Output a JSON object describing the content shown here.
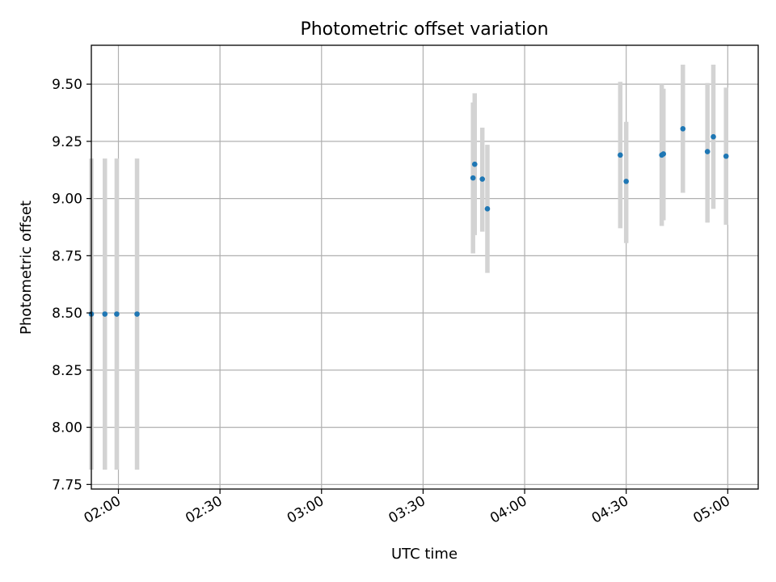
{
  "chart_data": {
    "type": "scatter",
    "title": "Photometric offset variation",
    "xlabel": "UTC time",
    "ylabel": "Photometric offset",
    "xlim": [
      "01:52",
      "05:09"
    ],
    "ylim": [
      7.73,
      9.67
    ],
    "x_ticks": [
      "02:00",
      "02:30",
      "03:00",
      "03:30",
      "04:00",
      "04:30",
      "05:00"
    ],
    "y_ticks": [
      "7.75",
      "8.00",
      "8.25",
      "8.50",
      "8.75",
      "9.00",
      "9.25",
      "9.50"
    ],
    "grid": true,
    "error_bars": true,
    "colors": {
      "points": "#1f77b4",
      "error_bars": "#d3d3d3",
      "grid": "#b0b0b0"
    },
    "points": [
      {
        "x": "01:52:00",
        "y": 8.495,
        "ylo": 7.815,
        "yhi": 9.175
      },
      {
        "x": "01:56:00",
        "y": 8.495,
        "ylo": 7.815,
        "yhi": 9.175
      },
      {
        "x": "01:59:30",
        "y": 8.495,
        "ylo": 7.815,
        "yhi": 9.175
      },
      {
        "x": "02:05:30",
        "y": 8.495,
        "ylo": 7.815,
        "yhi": 9.175
      },
      {
        "x": "03:44:45",
        "y": 9.09,
        "ylo": 8.76,
        "yhi": 9.42
      },
      {
        "x": "03:45:15",
        "y": 9.15,
        "ylo": 8.84,
        "yhi": 9.46
      },
      {
        "x": "03:47:30",
        "y": 9.085,
        "ylo": 8.855,
        "yhi": 9.31
      },
      {
        "x": "03:49:00",
        "y": 8.955,
        "ylo": 8.675,
        "yhi": 9.235
      },
      {
        "x": "04:28:15",
        "y": 9.19,
        "ylo": 8.87,
        "yhi": 9.51
      },
      {
        "x": "04:30:00",
        "y": 9.075,
        "ylo": 8.805,
        "yhi": 9.335
      },
      {
        "x": "04:40:30",
        "y": 9.19,
        "ylo": 8.88,
        "yhi": 9.5
      },
      {
        "x": "04:41:00",
        "y": 9.195,
        "ylo": 8.905,
        "yhi": 9.48
      },
      {
        "x": "04:46:45",
        "y": 9.305,
        "ylo": 9.025,
        "yhi": 9.585
      },
      {
        "x": "04:54:00",
        "y": 9.205,
        "ylo": 8.895,
        "yhi": 9.505
      },
      {
        "x": "04:55:45",
        "y": 9.27,
        "ylo": 8.955,
        "yhi": 9.585
      },
      {
        "x": "04:59:30",
        "y": 9.185,
        "ylo": 8.885,
        "yhi": 9.485
      }
    ]
  }
}
